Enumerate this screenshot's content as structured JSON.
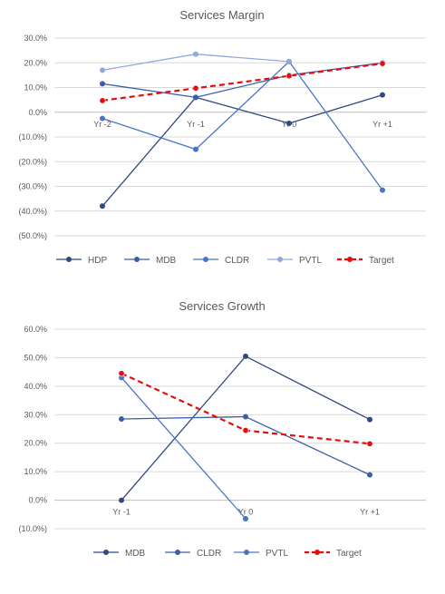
{
  "chart_data": [
    {
      "type": "line",
      "title": "Services Margin",
      "categories": [
        "Yr -2",
        "Yr -1",
        "Yr 0",
        "Yr +1"
      ],
      "ylim": [
        -50,
        30
      ],
      "yticks": [
        30,
        20,
        10,
        0,
        -10,
        -20,
        -30,
        -40,
        -50
      ],
      "ytick_labels": [
        "30.0%",
        "20.0%",
        "10.0%",
        "0.0%",
        "(10.0%)",
        "(20.0%)",
        "(30.0%)",
        "(40.0%)",
        "(50.0%)"
      ],
      "grid": true,
      "legend": "bottom",
      "series": [
        {
          "name": "HDP",
          "color": "#2f4a7c",
          "dashed": false,
          "values": [
            -38,
            6,
            -4.5,
            7
          ]
        },
        {
          "name": "MDB",
          "color": "#3a5fa8",
          "dashed": false,
          "values": [
            11.5,
            6,
            15,
            20
          ]
        },
        {
          "name": "CLDR",
          "color": "#4a74c4",
          "dashed": false,
          "values": [
            -2.5,
            -15,
            20.5,
            -31.5
          ]
        },
        {
          "name": "PVTL",
          "color": "#8fa9dc",
          "dashed": false,
          "values": [
            17,
            23.5,
            20.5,
            null
          ]
        },
        {
          "name": "Target",
          "color": "#e30e0e",
          "dashed": true,
          "values": [
            4.7,
            9.7,
            14.7,
            19.7
          ]
        }
      ]
    },
    {
      "type": "line",
      "title": "Services Growth",
      "categories": [
        "Yr -1",
        "Yr 0",
        "Yr +1"
      ],
      "ylim": [
        -10,
        60
      ],
      "yticks": [
        60,
        50,
        40,
        30,
        20,
        10,
        0,
        -10
      ],
      "ytick_labels": [
        "60.0%",
        "50.0%",
        "40.0%",
        "30.0%",
        "20.0%",
        "10.0%",
        "0.0%",
        "(10.0%)"
      ],
      "grid": true,
      "legend": "bottom",
      "series": [
        {
          "name": "MDB",
          "color": "#2f4a7c",
          "dashed": false,
          "values": [
            0,
            50.5,
            28.3
          ]
        },
        {
          "name": "CLDR",
          "color": "#3a5fa8",
          "dashed": false,
          "values": [
            28.5,
            29.3,
            8.9
          ]
        },
        {
          "name": "PVTL",
          "color": "#4a74c4",
          "dashed": false,
          "values": [
            43,
            -6.5,
            null
          ]
        },
        {
          "name": "Target",
          "color": "#e30e0e",
          "dashed": true,
          "values": [
            44.5,
            24.5,
            19.8
          ]
        }
      ]
    }
  ]
}
